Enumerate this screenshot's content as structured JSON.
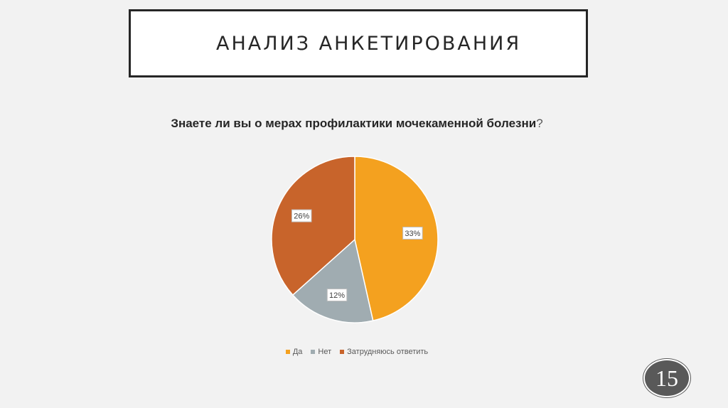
{
  "slide": {
    "title": "АНАЛИЗ АНКЕТИРОВАНИЯ",
    "page_number": "15"
  },
  "chart_data": {
    "type": "pie",
    "title": "Знаете ли вы о мерах профилактики мочекаменной болезни",
    "title_suffix": "?",
    "categories": [
      "Да",
      "Нет",
      "Затрудняюсь ответить"
    ],
    "values": [
      33,
      12,
      26
    ],
    "data_labels": [
      "33%",
      "12%",
      "26%"
    ],
    "colors": [
      "#f4a11f",
      "#a0acb1",
      "#c8642b"
    ],
    "legend_position": "bottom"
  }
}
